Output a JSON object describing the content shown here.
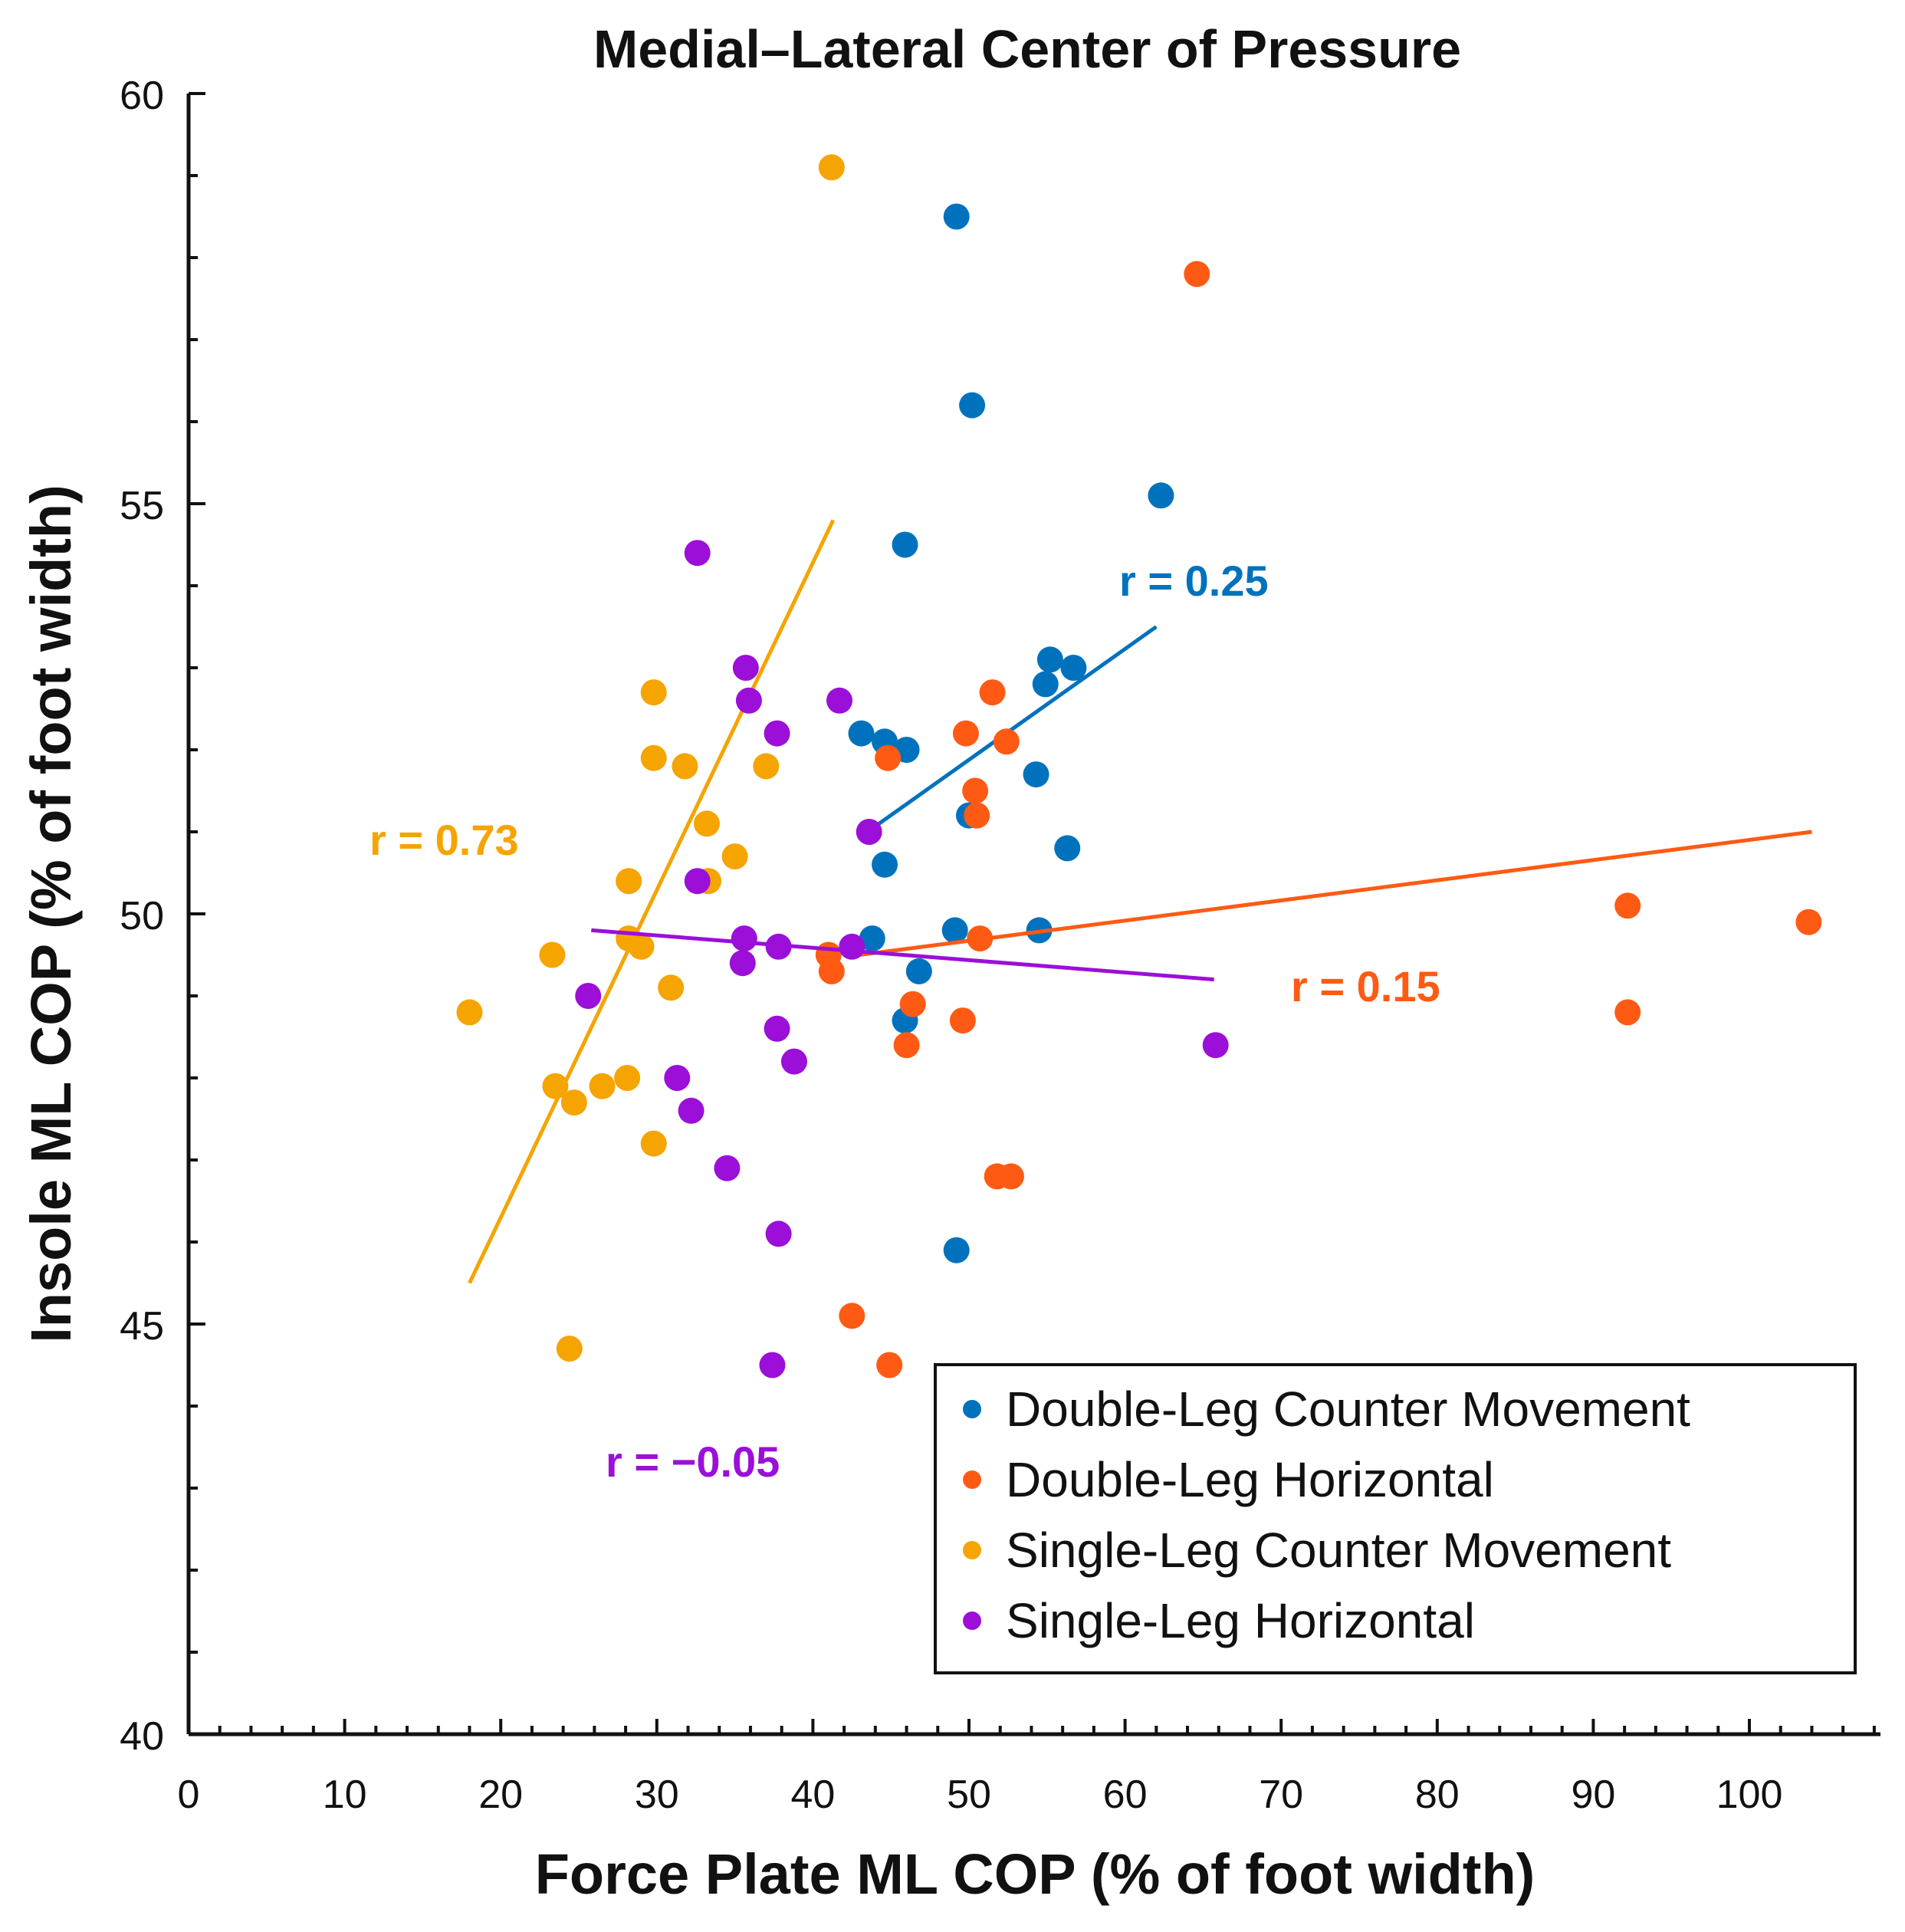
{
  "chart_data": {
    "type": "scatter",
    "title": "Medial–Lateral Center of Pressure",
    "xlabel": "Force Plate ML COP (% of foot width)",
    "ylabel": "Insole ML COP (% of foot width)",
    "xlim": [
      0,
      110
    ],
    "ylim": [
      40,
      60
    ],
    "xticks": [
      "0",
      "10",
      "20",
      "30",
      "40",
      "50",
      "60",
      "70",
      "80",
      "90",
      "100"
    ],
    "yticks": [
      "40",
      "45",
      "50",
      "55",
      "60"
    ],
    "grid": false,
    "legend_position": "bottom-right",
    "series": [
      {
        "name": "Double-Leg Counter Movement",
        "color": "#0072bd",
        "r_label": "r = 0.25",
        "fit": [
          [
            43.5,
            51.0
          ],
          [
            62.0,
            53.5
          ]
        ],
        "points": [
          [
            49.2,
            58.5
          ],
          [
            50.2,
            56.2
          ],
          [
            62.3,
            55.1
          ],
          [
            45.9,
            54.5
          ],
          [
            55.2,
            53.1
          ],
          [
            56.7,
            53.0
          ],
          [
            54.9,
            52.8
          ],
          [
            43.1,
            52.2
          ],
          [
            44.6,
            52.1
          ],
          [
            46.0,
            52.0
          ],
          [
            54.3,
            51.7
          ],
          [
            50.0,
            51.2
          ],
          [
            56.3,
            50.8
          ],
          [
            44.6,
            50.6
          ],
          [
            49.1,
            49.8
          ],
          [
            54.5,
            49.8
          ],
          [
            43.8,
            49.7
          ],
          [
            46.8,
            49.3
          ],
          [
            45.9,
            48.7
          ],
          [
            49.2,
            45.9
          ]
        ]
      },
      {
        "name": "Double-Leg Horizontal",
        "color": "#ff5a14",
        "r_label": "r = 0.15",
        "fit": [
          [
            43.0,
            49.5
          ],
          [
            104.0,
            51.0
          ]
        ],
        "points": [
          [
            64.6,
            57.8
          ],
          [
            51.5,
            52.7
          ],
          [
            49.8,
            52.2
          ],
          [
            52.4,
            52.1
          ],
          [
            44.8,
            51.9
          ],
          [
            50.4,
            51.5
          ],
          [
            50.5,
            51.2
          ],
          [
            92.2,
            50.1
          ],
          [
            103.8,
            49.9
          ],
          [
            50.7,
            49.7
          ],
          [
            41.0,
            49.5
          ],
          [
            41.2,
            49.3
          ],
          [
            46.4,
            48.9
          ],
          [
            49.6,
            48.7
          ],
          [
            92.2,
            48.8
          ],
          [
            46.0,
            48.4
          ],
          [
            51.8,
            46.8
          ],
          [
            52.7,
            46.8
          ],
          [
            42.5,
            45.1
          ],
          [
            44.9,
            44.5
          ]
        ]
      },
      {
        "name": "Single-Leg Counter Movement",
        "color": "#f5a400",
        "r_label": "r = 0.73",
        "fit": [
          [
            18.0,
            45.5
          ],
          [
            41.3,
            54.8
          ]
        ],
        "points": [
          [
            41.2,
            59.1
          ],
          [
            29.8,
            52.7
          ],
          [
            29.8,
            51.9
          ],
          [
            31.8,
            51.8
          ],
          [
            37.0,
            51.8
          ],
          [
            33.2,
            51.1
          ],
          [
            35.0,
            50.7
          ],
          [
            28.2,
            50.4
          ],
          [
            33.3,
            50.4
          ],
          [
            28.2,
            49.7
          ],
          [
            29.0,
            49.6
          ],
          [
            23.3,
            49.5
          ],
          [
            30.9,
            49.1
          ],
          [
            18.0,
            48.8
          ],
          [
            23.5,
            47.9
          ],
          [
            24.7,
            47.7
          ],
          [
            26.5,
            47.9
          ],
          [
            28.1,
            48.0
          ],
          [
            29.8,
            47.2
          ],
          [
            24.4,
            44.7
          ]
        ]
      },
      {
        "name": "Single-Leg Horizontal",
        "color": "#9b0fd9",
        "r_label": "r = −0.05",
        "fit": [
          [
            25.8,
            49.8
          ],
          [
            65.7,
            49.2
          ]
        ],
        "points": [
          [
            32.6,
            54.4
          ],
          [
            35.7,
            53.0
          ],
          [
            35.9,
            52.6
          ],
          [
            41.7,
            52.6
          ],
          [
            37.7,
            52.2
          ],
          [
            43.6,
            51.0
          ],
          [
            32.6,
            50.4
          ],
          [
            35.6,
            49.7
          ],
          [
            37.8,
            49.6
          ],
          [
            42.5,
            49.6
          ],
          [
            35.5,
            49.4
          ],
          [
            25.6,
            49.0
          ],
          [
            37.7,
            48.6
          ],
          [
            38.8,
            48.2
          ],
          [
            31.3,
            48.0
          ],
          [
            32.2,
            47.6
          ],
          [
            34.5,
            46.9
          ],
          [
            37.8,
            46.1
          ],
          [
            37.4,
            44.5
          ],
          [
            65.8,
            48.4
          ]
        ]
      }
    ]
  }
}
